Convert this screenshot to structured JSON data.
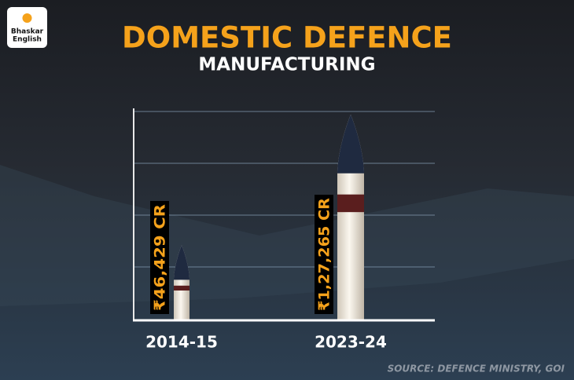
{
  "logo": [
    "Bhaskar",
    "English"
  ],
  "chart_data": {
    "type": "bar",
    "title": "DOMESTIC DEFENCE",
    "subtitle": "MANUFACTURING",
    "categories": [
      "2014-15",
      "2023-24"
    ],
    "values": [
      46429,
      127265
    ],
    "value_labels": [
      "₹46,429 CR",
      "₹1,27,265 CR"
    ],
    "color": "#f4efe6",
    "ylim": [
      0,
      135000
    ],
    "grid": true,
    "source": "SOURCE: DEFENCE MINISTRY, GOI"
  }
}
